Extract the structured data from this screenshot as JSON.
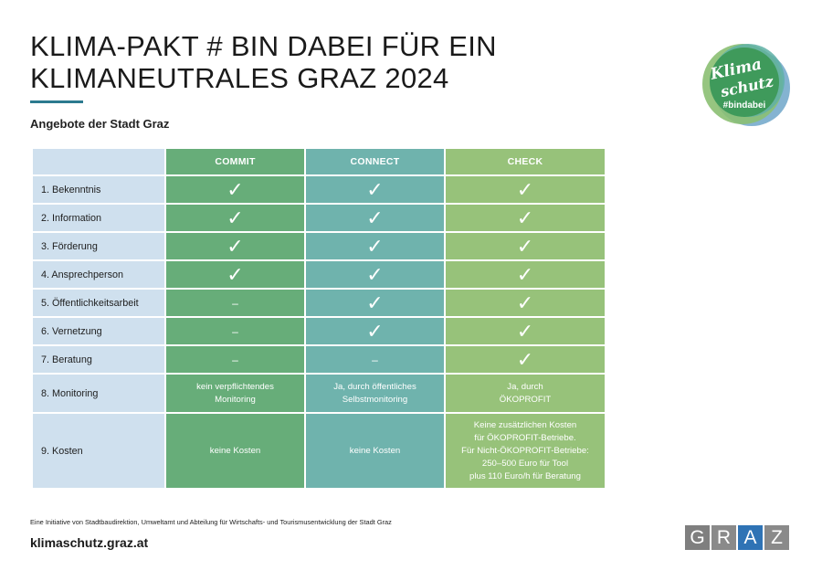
{
  "header": {
    "title_line1": "KLIMA-PAKT # BIN DABEI FÜR EIN",
    "title_line2": "KLIMANEUTRALES GRAZ 2024",
    "subtitle": "Angebote der Stadt Graz"
  },
  "logo": {
    "line1": "Klima",
    "line2": "schutz",
    "hashtag": "#bindabei",
    "colors": {
      "dark_green": "#3f9a5b",
      "teal": "#5fb0a6",
      "light_green": "#8bbf72",
      "blue": "#6fa6c9"
    }
  },
  "table": {
    "columns": [
      "COMMIT",
      "CONNECT",
      "CHECK"
    ],
    "colors": {
      "label_bg": "#cfe0ee",
      "commit": "#67ad79",
      "connect": "#6fb3ad",
      "check": "#97c27a"
    },
    "check_mark": "✓",
    "dash": "–",
    "rows": [
      {
        "label": "1. Bekenntnis",
        "commit": "✓",
        "connect": "✓",
        "check": "✓"
      },
      {
        "label": "2. Information",
        "commit": "✓",
        "connect": "✓",
        "check": "✓"
      },
      {
        "label": "3. Förderung",
        "commit": "✓",
        "connect": "✓",
        "check": "✓"
      },
      {
        "label": "4. Ansprechperson",
        "commit": "✓",
        "connect": "✓",
        "check": "✓"
      },
      {
        "label": "5. Öffentlichkeitsarbeit",
        "commit": "–",
        "connect": "✓",
        "check": "✓"
      },
      {
        "label": "6. Vernetzung",
        "commit": "–",
        "connect": "✓",
        "check": "✓"
      },
      {
        "label": "7. Beratung",
        "commit": "–",
        "connect": "–",
        "check": "✓"
      },
      {
        "label": "8. Monitoring",
        "commit": [
          "kein verpflichtendes",
          "Monitoring"
        ],
        "connect": [
          "Ja, durch öffentliches",
          "Selbstmonitoring"
        ],
        "check": [
          "Ja, durch",
          "ÖKOPROFIT"
        ]
      },
      {
        "label": "9. Kosten",
        "commit": [
          "keine Kosten"
        ],
        "connect": [
          "keine Kosten"
        ],
        "check": [
          "Keine zusätzlichen Kosten",
          "für ÖKOPROFIT-Betriebe.",
          "Für Nicht-ÖKOPROFIT-Betriebe:",
          "250–500 Euro für Tool",
          "plus 110 Euro/h für Beratung"
        ]
      }
    ]
  },
  "footer": {
    "note": "Eine Initiative von Stadtbaudirektion, Umweltamt und Abteilung für Wirtschafts- und Tourismusentwicklung der Stadt Graz",
    "website": "klimaschutz.graz.at",
    "brand_letters": [
      "G",
      "R",
      "A",
      "Z"
    ]
  }
}
